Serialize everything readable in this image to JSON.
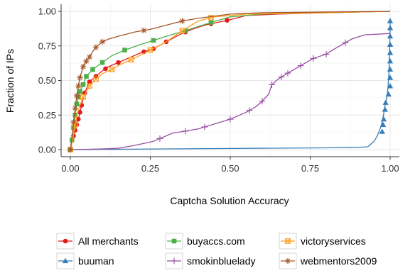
{
  "chart_data": {
    "type": "line",
    "title": "",
    "xlabel": "Captcha Solution Accuracy",
    "ylabel": "Fraction of IPs",
    "xlim": [
      0,
      1
    ],
    "ylim": [
      0,
      1
    ],
    "x_ticks": [
      0,
      0.25,
      0.5,
      0.75,
      1
    ],
    "x_tick_labels": [
      "0.00",
      "0.25",
      "0.50",
      "0.75",
      "1.00"
    ],
    "y_ticks": [
      0,
      0.25,
      0.5,
      0.75,
      1
    ],
    "y_tick_labels": [
      "0.00",
      "0.25",
      "0.50",
      "0.75",
      "1.00"
    ],
    "grid": true,
    "legend_position": "bottom",
    "series": [
      {
        "name": "All merchants",
        "color": "#e41a1c",
        "marker": "circle",
        "points": [
          [
            0,
            0
          ],
          [
            0.005,
            0.05
          ],
          [
            0.01,
            0.1
          ],
          [
            0.015,
            0.14
          ],
          [
            0.02,
            0.18
          ],
          [
            0.025,
            0.22
          ],
          [
            0.03,
            0.27
          ],
          [
            0.035,
            0.32
          ],
          [
            0.04,
            0.37
          ],
          [
            0.045,
            0.41
          ],
          [
            0.05,
            0.44
          ],
          [
            0.06,
            0.49
          ],
          [
            0.07,
            0.51
          ],
          [
            0.08,
            0.53
          ],
          [
            0.1,
            0.57
          ],
          [
            0.12,
            0.6
          ],
          [
            0.15,
            0.63
          ],
          [
            0.18,
            0.66
          ],
          [
            0.22,
            0.7
          ],
          [
            0.26,
            0.73
          ],
          [
            0.3,
            0.78
          ],
          [
            0.34,
            0.83
          ],
          [
            0.38,
            0.87
          ],
          [
            0.42,
            0.9
          ],
          [
            0.46,
            0.92
          ],
          [
            0.5,
            0.94
          ],
          [
            0.55,
            0.97
          ],
          [
            0.65,
            0.98
          ],
          [
            0.8,
            0.99
          ],
          [
            1,
            1
          ]
        ],
        "markers_x": [
          0.0,
          0.01,
          0.015,
          0.02,
          0.025,
          0.03,
          0.035,
          0.045,
          0.06,
          0.08,
          0.11,
          0.15,
          0.23,
          0.26,
          0.3,
          0.36,
          0.44,
          0.49
        ]
      },
      {
        "name": "buyaccs.com",
        "color": "#4daf4a",
        "marker": "square",
        "points": [
          [
            0,
            0
          ],
          [
            0.005,
            0.07
          ],
          [
            0.01,
            0.16
          ],
          [
            0.015,
            0.25
          ],
          [
            0.02,
            0.33
          ],
          [
            0.025,
            0.38
          ],
          [
            0.03,
            0.42
          ],
          [
            0.04,
            0.47
          ],
          [
            0.05,
            0.53
          ],
          [
            0.07,
            0.58
          ],
          [
            0.1,
            0.63
          ],
          [
            0.13,
            0.68
          ],
          [
            0.17,
            0.72
          ],
          [
            0.22,
            0.76
          ],
          [
            0.26,
            0.79
          ],
          [
            0.3,
            0.82
          ],
          [
            0.36,
            0.86
          ],
          [
            0.44,
            0.92
          ],
          [
            0.5,
            0.96
          ],
          [
            0.6,
            0.98
          ],
          [
            0.8,
            0.99
          ],
          [
            1,
            1
          ]
        ],
        "markers_x": [
          0.0,
          0.005,
          0.01,
          0.015,
          0.02,
          0.025,
          0.03,
          0.04,
          0.05,
          0.07,
          0.1,
          0.17,
          0.26,
          0.36,
          0.44
        ]
      },
      {
        "name": "victoryservices",
        "color": "#ff9f1c",
        "marker": "square-x",
        "points": [
          [
            0,
            0
          ],
          [
            0.008,
            0.08
          ],
          [
            0.015,
            0.18
          ],
          [
            0.022,
            0.26
          ],
          [
            0.03,
            0.32
          ],
          [
            0.04,
            0.38
          ],
          [
            0.05,
            0.42
          ],
          [
            0.06,
            0.46
          ],
          [
            0.08,
            0.51
          ],
          [
            0.1,
            0.55
          ],
          [
            0.13,
            0.58
          ],
          [
            0.16,
            0.62
          ],
          [
            0.2,
            0.66
          ],
          [
            0.25,
            0.72
          ],
          [
            0.3,
            0.78
          ],
          [
            0.35,
            0.86
          ],
          [
            0.4,
            0.93
          ],
          [
            0.45,
            0.96
          ],
          [
            0.55,
            0.98
          ],
          [
            0.8,
            0.99
          ],
          [
            1,
            1
          ]
        ],
        "markers_x": [
          0.0,
          0.015,
          0.04,
          0.06,
          0.08,
          0.13,
          0.19,
          0.25,
          0.35,
          0.44
        ]
      },
      {
        "name": "buuman",
        "color": "#377eb8",
        "marker": "triangle",
        "points": [
          [
            0,
            0
          ],
          [
            0.3,
            0.005
          ],
          [
            0.6,
            0.01
          ],
          [
            0.8,
            0.013
          ],
          [
            0.9,
            0.017
          ],
          [
            0.93,
            0.02
          ],
          [
            0.95,
            0.06
          ],
          [
            0.96,
            0.1
          ],
          [
            0.97,
            0.16
          ],
          [
            0.975,
            0.2
          ],
          [
            0.98,
            0.26
          ],
          [
            0.985,
            0.33
          ],
          [
            0.99,
            0.38
          ],
          [
            0.993,
            0.44
          ],
          [
            0.996,
            0.55
          ],
          [
            0.998,
            0.7
          ],
          [
            1,
            0.85
          ],
          [
            1,
            0.95
          ]
        ],
        "markers": [
          [
            0.975,
            0.13
          ],
          [
            0.978,
            0.18
          ],
          [
            0.98,
            0.22
          ],
          [
            0.984,
            0.29
          ],
          [
            0.986,
            0.34
          ],
          [
            0.995,
            0.4
          ],
          [
            1,
            0.46
          ],
          [
            1,
            0.52
          ],
          [
            1,
            0.58
          ],
          [
            1,
            0.64
          ],
          [
            1,
            0.7
          ],
          [
            1,
            0.76
          ],
          [
            1,
            0.82
          ],
          [
            1,
            0.88
          ],
          [
            1,
            0.93
          ]
        ]
      },
      {
        "name": "smokinbluelady",
        "color": "#984ea3",
        "marker": "plus",
        "points": [
          [
            0,
            0
          ],
          [
            0.1,
            0.005
          ],
          [
            0.15,
            0.01
          ],
          [
            0.2,
            0.03
          ],
          [
            0.23,
            0.045
          ],
          [
            0.26,
            0.06
          ],
          [
            0.29,
            0.09
          ],
          [
            0.32,
            0.12
          ],
          [
            0.35,
            0.13
          ],
          [
            0.4,
            0.15
          ],
          [
            0.5,
            0.22
          ],
          [
            0.52,
            0.24
          ],
          [
            0.55,
            0.27
          ],
          [
            0.58,
            0.31
          ],
          [
            0.6,
            0.35
          ],
          [
            0.62,
            0.4
          ],
          [
            0.63,
            0.47
          ],
          [
            0.65,
            0.51
          ],
          [
            0.67,
            0.54
          ],
          [
            0.7,
            0.58
          ],
          [
            0.73,
            0.62
          ],
          [
            0.76,
            0.66
          ],
          [
            0.8,
            0.69
          ],
          [
            0.82,
            0.72
          ],
          [
            0.85,
            0.76
          ],
          [
            0.88,
            0.8
          ],
          [
            0.92,
            0.83
          ],
          [
            1,
            0.84
          ]
        ],
        "markers_x": [
          0.28,
          0.36,
          0.42,
          0.5,
          0.56,
          0.6,
          0.63,
          0.66,
          0.68,
          0.72,
          0.76,
          0.8,
          0.86
        ]
      },
      {
        "name": "webmentors2009",
        "color": "#a65628",
        "marker": "asterisk",
        "points": [
          [
            0,
            0
          ],
          [
            0.005,
            0.08
          ],
          [
            0.01,
            0.2
          ],
          [
            0.015,
            0.3
          ],
          [
            0.02,
            0.39
          ],
          [
            0.025,
            0.46
          ],
          [
            0.03,
            0.52
          ],
          [
            0.035,
            0.56
          ],
          [
            0.04,
            0.6
          ],
          [
            0.05,
            0.64
          ],
          [
            0.06,
            0.67
          ],
          [
            0.07,
            0.71
          ],
          [
            0.08,
            0.74
          ],
          [
            0.1,
            0.78
          ],
          [
            0.12,
            0.8
          ],
          [
            0.15,
            0.82
          ],
          [
            0.2,
            0.85
          ],
          [
            0.25,
            0.87
          ],
          [
            0.3,
            0.9
          ],
          [
            0.35,
            0.93
          ],
          [
            0.4,
            0.95
          ],
          [
            0.5,
            0.98
          ],
          [
            0.6,
            0.99
          ],
          [
            1,
            1
          ]
        ],
        "markers_x": [
          0.0,
          0.01,
          0.015,
          0.02,
          0.025,
          0.03,
          0.04,
          0.05,
          0.06,
          0.08,
          0.1,
          0.23,
          0.35
        ]
      }
    ]
  }
}
